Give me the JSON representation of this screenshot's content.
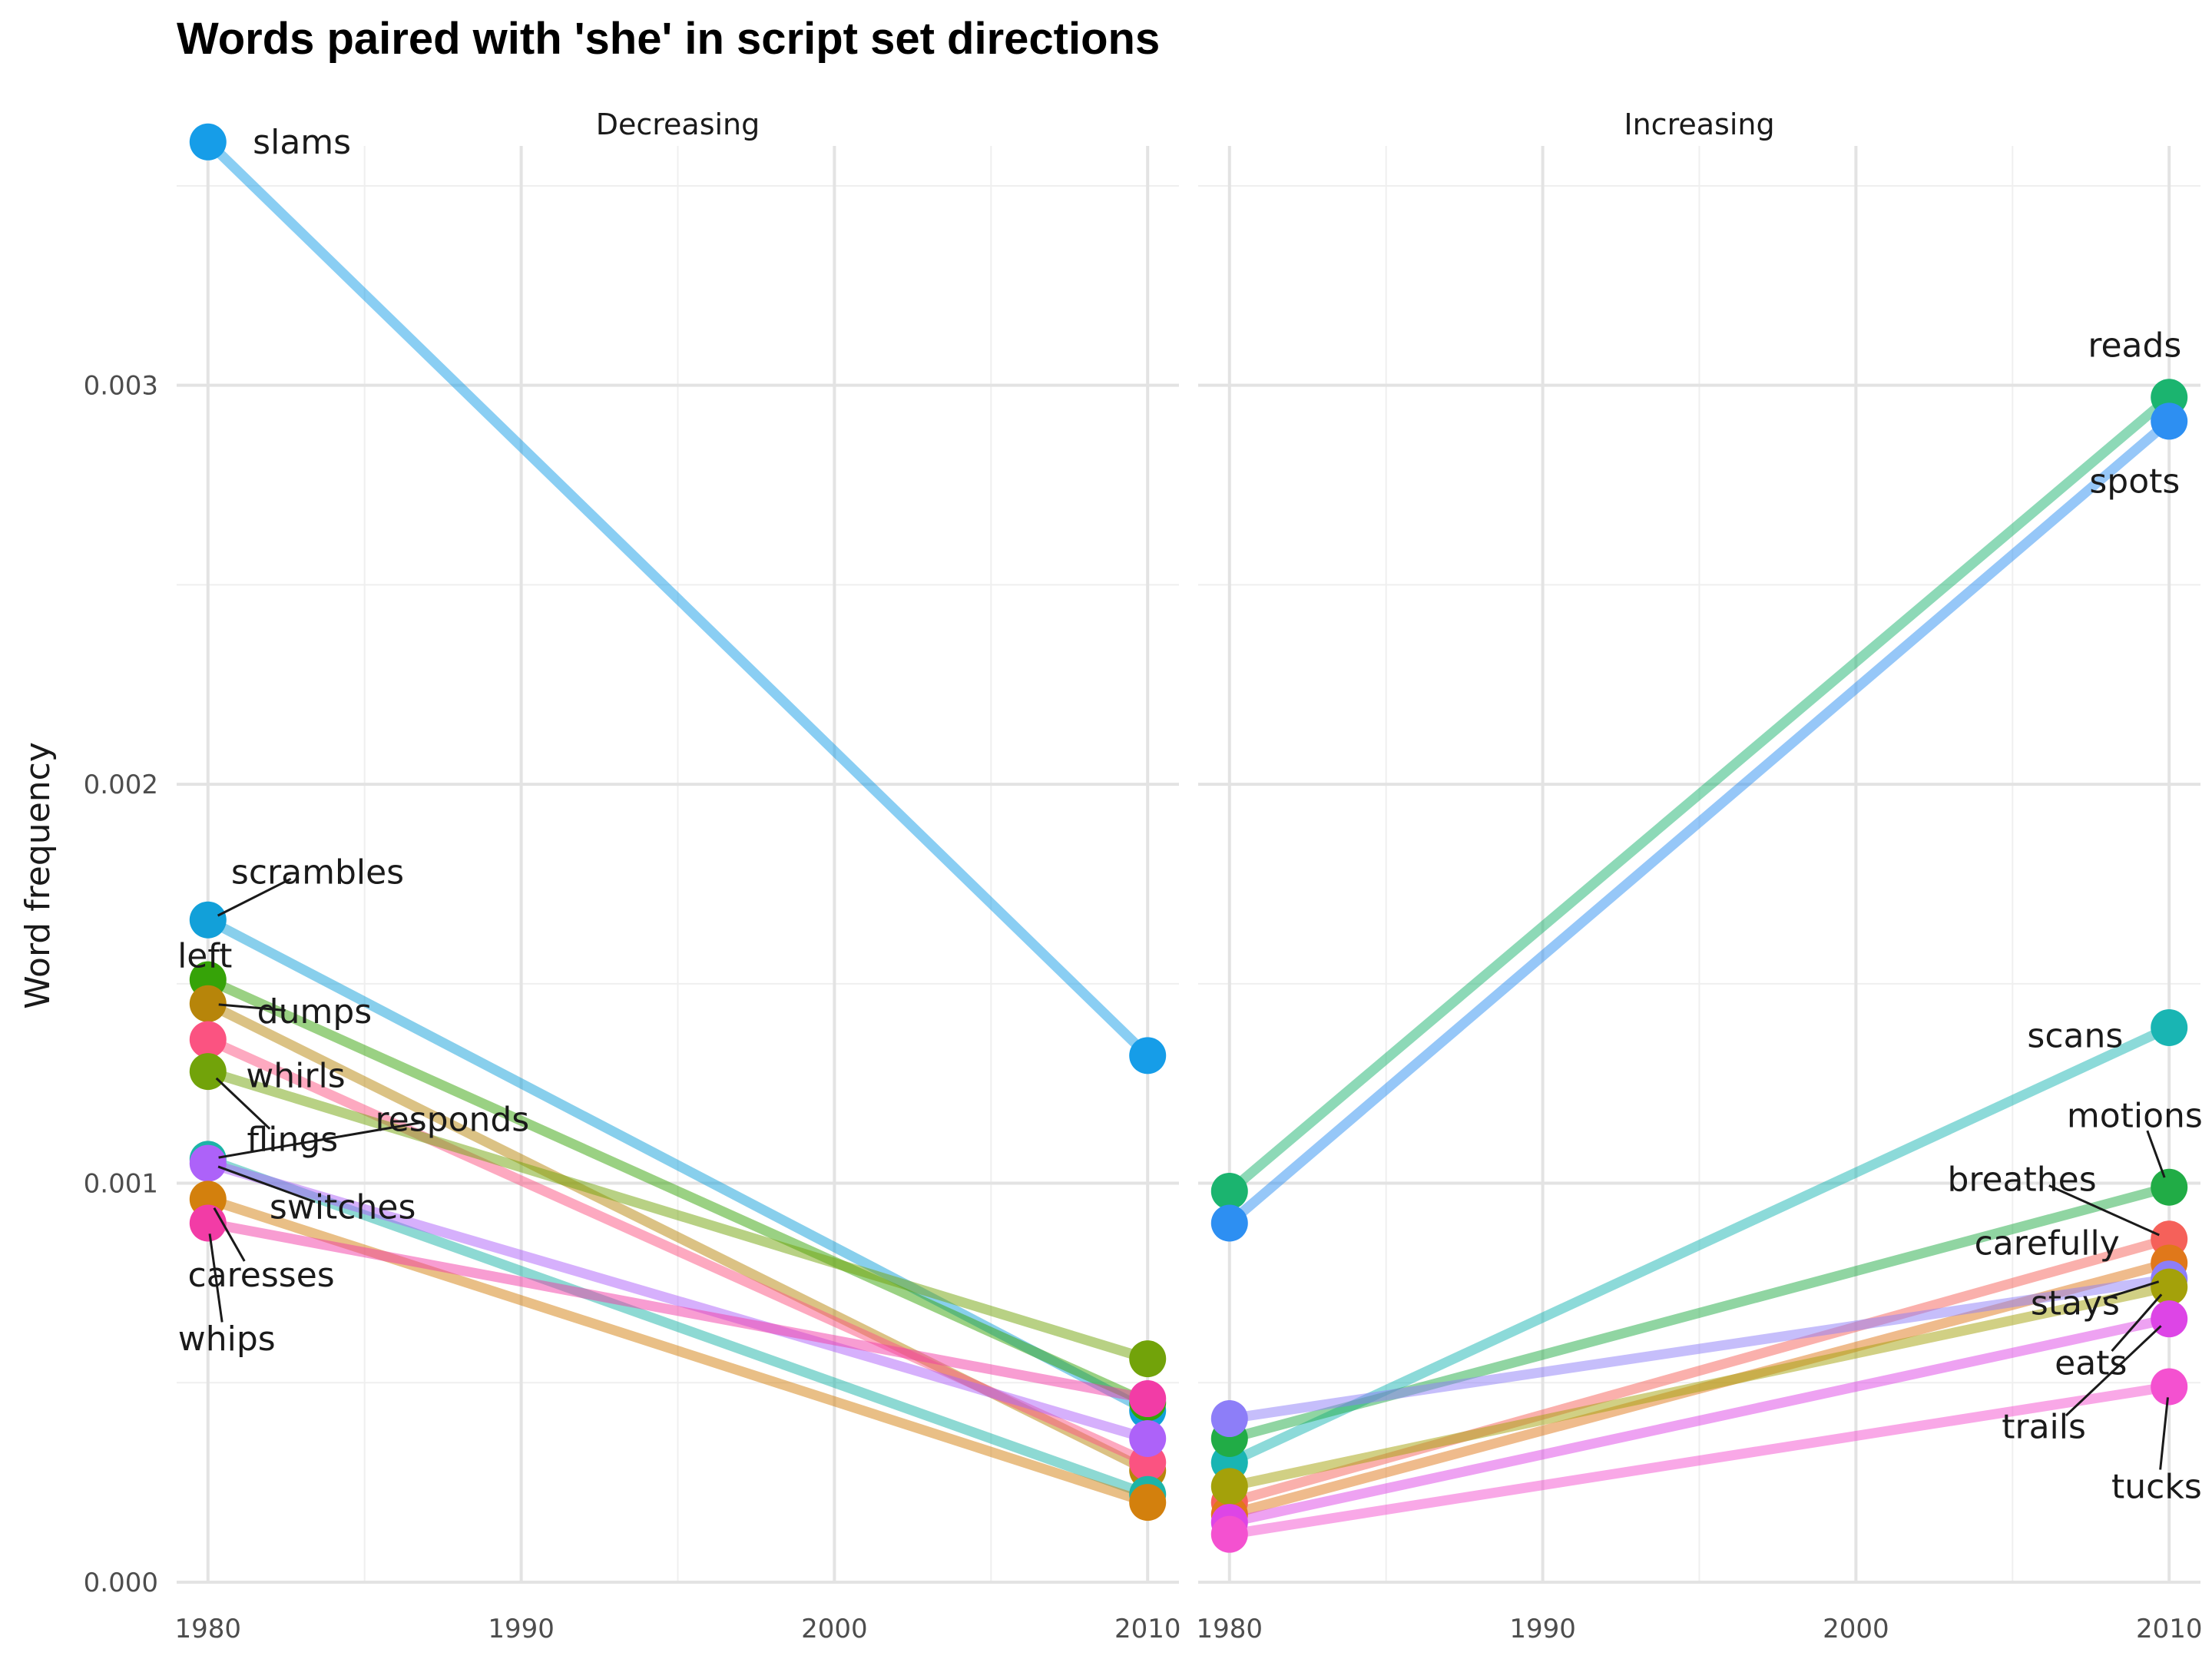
{
  "chart_data": {
    "type": "line",
    "title": "Words paired with 'she' in script set directions",
    "xlabel": "",
    "ylabel": "Word frequency",
    "x": [
      1980,
      2010
    ],
    "xlim": [
      1979,
      2011
    ],
    "xticks": [
      "1980",
      "1990",
      "2000",
      "2010"
    ],
    "ylim": [
      0,
      0.0036
    ],
    "yticks": [
      "0.000",
      "0.001",
      "0.002",
      "0.003"
    ],
    "grid": true,
    "legend": "none",
    "panels": [
      {
        "name": "Decreasing",
        "series": [
          {
            "name": "slams",
            "color": "#169de8",
            "values": [
              0.00361,
              0.00132
            ],
            "label_pos": [
              1983.0,
              0.00361
            ],
            "label_anchor": "middle"
          },
          {
            "name": "scrambles",
            "color": "#12a0d9",
            "values": [
              0.00166,
              0.00043
            ],
            "label_pos": [
              1983.5,
              0.00178
            ],
            "label_anchor": "middle",
            "leader": true
          },
          {
            "name": "left",
            "color": "#36a308",
            "values": [
              0.00151,
              0.00045
            ],
            "label_pos": [
              1979.9,
              0.00157
            ],
            "label_anchor": "middle"
          },
          {
            "name": "dumps",
            "color": "#b7850a",
            "values": [
              0.00145,
              0.00028
            ],
            "label_pos": [
              1983.4,
              0.00143
            ],
            "label_anchor": "middle",
            "leader": true
          },
          {
            "name": "whirls",
            "color": "#fb5381",
            "values": [
              0.00136,
              0.0003
            ],
            "label_pos": [
              1982.8,
              0.00127
            ],
            "label_anchor": "middle"
          },
          {
            "name": "flings",
            "color": "#72a30a",
            "values": [
              0.00128,
              0.00056
            ],
            "label_pos": [
              1982.7,
              0.00111
            ],
            "label_anchor": "middle",
            "leader": true
          },
          {
            "name": "responds",
            "color": "#1cb4a7",
            "values": [
              0.00106,
              0.00022
            ],
            "label_pos": [
              1987.8,
              0.00116
            ],
            "label_anchor": "middle",
            "leader": true
          },
          {
            "name": "switches",
            "color": "#ad62f9",
            "values": [
              0.00105,
              0.00036
            ],
            "label_pos": [
              1984.3,
              0.00094
            ],
            "label_anchor": "middle",
            "leader": true
          },
          {
            "name": "caresses",
            "color": "#d3800d",
            "values": [
              0.00096,
              0.0002
            ],
            "label_pos": [
              1981.7,
              0.00077
            ],
            "label_anchor": "middle",
            "leader": true
          },
          {
            "name": "whips",
            "color": "#f23ca6",
            "values": [
              0.0009,
              0.00046
            ],
            "label_pos": [
              1980.6,
              0.00061
            ],
            "label_anchor": "middle",
            "leader": true
          }
        ]
      },
      {
        "name": "Increasing",
        "series": [
          {
            "name": "reads",
            "color": "#1bb46f",
            "values": [
              0.00098,
              0.00297
            ],
            "label_pos": [
              2008.9,
              0.0031
            ],
            "label_anchor": "middle"
          },
          {
            "name": "spots",
            "color": "#2d8ff2",
            "values": [
              0.0009,
              0.00291
            ],
            "label_pos": [
              2008.9,
              0.00276
            ],
            "label_anchor": "middle"
          },
          {
            "name": "scans",
            "color": "#19b5b3",
            "values": [
              0.0003,
              0.00139
            ],
            "label_pos": [
              2007.0,
              0.00137
            ],
            "label_anchor": "middle"
          },
          {
            "name": "motions",
            "color": "#21ac46",
            "values": [
              0.00036,
              0.00099
            ],
            "label_pos": [
              2008.9,
              0.00117
            ],
            "label_anchor": "middle",
            "leader": true
          },
          {
            "name": "breathes",
            "color": "#f5615a",
            "values": [
              0.0002,
              0.00086
            ],
            "label_pos": [
              2005.3,
              0.00101
            ],
            "label_anchor": "middle",
            "leader": true
          },
          {
            "name": "carefully",
            "color": "#e0781a",
            "values": [
              0.00017,
              0.0008
            ],
            "label_pos": [
              2006.1,
              0.00085
            ],
            "label_anchor": "middle"
          },
          {
            "name": "stays",
            "color": "#8d7ef8",
            "values": [
              0.00041,
              0.00076
            ],
            "label_pos": [
              2007.0,
              0.0007
            ],
            "label_anchor": "middle",
            "leader": true
          },
          {
            "name": "eats",
            "color": "#a4a10a",
            "values": [
              0.00024,
              0.00074
            ],
            "label_pos": [
              2007.5,
              0.00055
            ],
            "label_anchor": "middle",
            "leader": true
          },
          {
            "name": "trails",
            "color": "#dd45e6",
            "values": [
              0.00015,
              0.00066
            ],
            "label_pos": [
              2006.0,
              0.00039
            ],
            "label_anchor": "middle",
            "leader": true
          },
          {
            "name": "tucks",
            "color": "#f451d0",
            "values": [
              0.00012,
              0.00049
            ],
            "label_pos": [
              2009.6,
              0.00024
            ],
            "label_anchor": "middle",
            "leader": true
          }
        ]
      }
    ]
  }
}
